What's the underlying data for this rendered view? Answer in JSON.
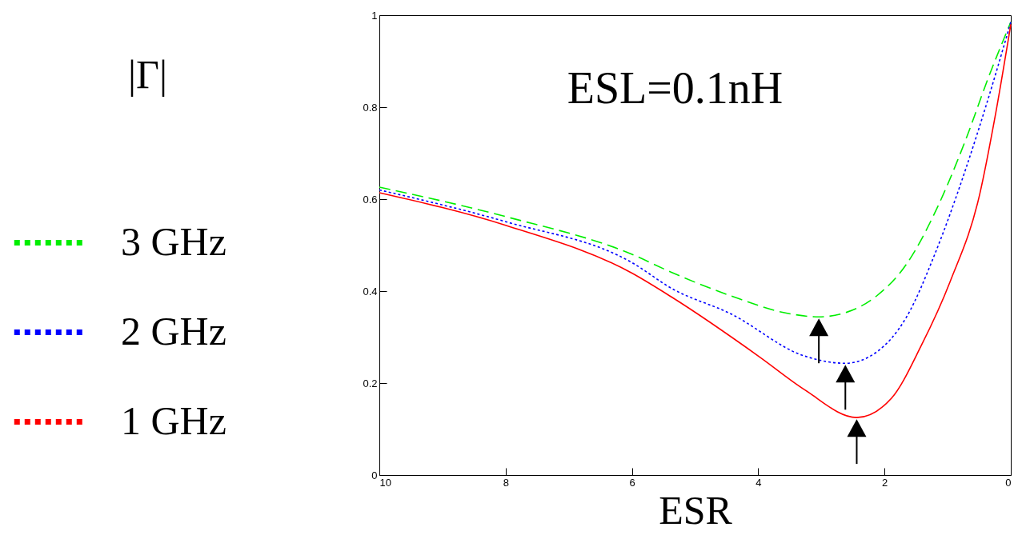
{
  "chart_data": {
    "type": "line",
    "title": "ESL=0.1nH",
    "xlabel": "ESR",
    "ylabel": "|Γ|",
    "xlim": [
      10,
      0
    ],
    "xticks": [
      10,
      8,
      6,
      4,
      2,
      0
    ],
    "ylim": [
      0,
      1
    ],
    "yticks": [
      0,
      0.2,
      0.4,
      0.6,
      0.8,
      1
    ],
    "legend": "left",
    "grid": false,
    "series": [
      {
        "name": "3 GHz",
        "color": "#00ee00",
        "line_style": "dashed",
        "x": [
          10,
          8,
          6,
          5.36,
          4.44,
          3.51,
          3.04,
          2.58,
          2.12,
          1.65,
          1.19,
          0.72,
          0.35,
          0
        ],
        "values": [
          0.626,
          0.562,
          0.48,
          0.44,
          0.39,
          0.351,
          0.344,
          0.355,
          0.39,
          0.459,
          0.574,
          0.727,
          0.866,
          0.985
        ]
      },
      {
        "name": "2 GHz",
        "color": "#0000ff",
        "line_style": "dotted",
        "x": [
          10,
          8,
          6,
          5.36,
          4.44,
          3.27,
          2.62,
          2.12,
          1.65,
          1.19,
          0.72,
          0.35,
          0
        ],
        "values": [
          0.62,
          0.551,
          0.462,
          0.405,
          0.351,
          0.259,
          0.243,
          0.268,
          0.344,
          0.485,
          0.663,
          0.822,
          0.985
        ]
      },
      {
        "name": "1 GHz",
        "color": "#ff0000",
        "line_style": "solid",
        "x": [
          10,
          8,
          6,
          5.36,
          3.97,
          3.27,
          2.44,
          1.89,
          1.42,
          0.96,
          0.49,
          0.26,
          0
        ],
        "values": [
          0.614,
          0.543,
          0.439,
          0.386,
          0.256,
          0.186,
          0.125,
          0.167,
          0.281,
          0.421,
          0.612,
          0.771,
          0.98
        ]
      }
    ]
  }
}
